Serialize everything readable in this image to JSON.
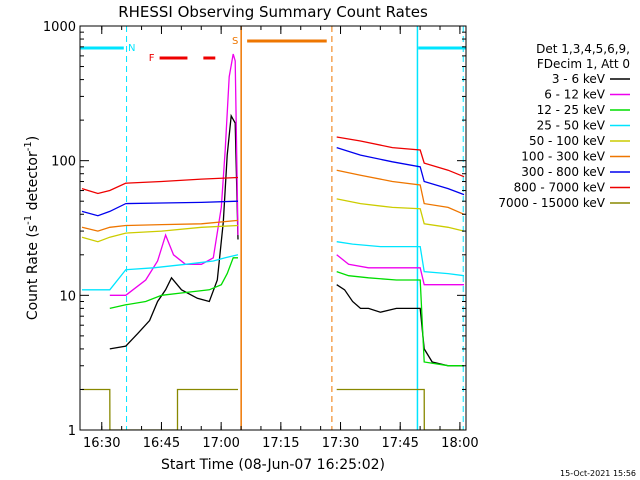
{
  "chart_data": {
    "type": "line",
    "title": "RHESSI Observing Summary Count Rates",
    "xlabel": "Start Time (08-Jun-07 16:25:02)",
    "ylabel_main": "Count Rate (s",
    "ylabel_sup1": "-1",
    "ylabel_mid": " detector",
    "ylabel_sup2": "-1",
    "ylabel_end": ")",
    "y_scale": "log",
    "ylim": [
      1,
      1000
    ],
    "xlim_minutes": [
      -0.5,
      96.5
    ],
    "x_ticks": [
      {
        "label": "16:30",
        "t": 4.97
      },
      {
        "label": "16:45",
        "t": 19.97
      },
      {
        "label": "17:00",
        "t": 34.97
      },
      {
        "label": "17:15",
        "t": 49.97
      },
      {
        "label": "17:30",
        "t": 64.97
      },
      {
        "label": "17:45",
        "t": 79.97
      },
      {
        "label": "18:00",
        "t": 94.97
      }
    ],
    "y_ticks": [
      {
        "label": "1",
        "v": 1
      },
      {
        "label": "10",
        "v": 10
      },
      {
        "label": "100",
        "v": 100
      },
      {
        "label": "1000",
        "v": 1000
      }
    ],
    "legend_header": [
      "Det 1,3,4,5,6,9,",
      "FDecim 1, Att 0"
    ],
    "legend_placement": "right",
    "timestamp": "15-Oct-2021 15:56",
    "flags": {
      "night_label": "N",
      "flare_label": "F",
      "saa_label": "S",
      "night_color": "#00e5ff",
      "flare_color": "#ee0000",
      "saa_color": "#ee7600",
      "night_intervals": [
        [
          -0.5,
          10.5
        ],
        [
          84.5,
          96.5
        ]
      ],
      "flare_intervals": [
        [
          19.5,
          26.5
        ],
        [
          30.5,
          33.5
        ]
      ],
      "saa_intervals": [
        [
          41.5,
          61.5
        ]
      ],
      "dashed_lines": [
        {
          "t": 11.2,
          "color": "#00e5ff"
        },
        {
          "t": 95.8,
          "color": "#00e5ff"
        },
        {
          "t": 62.8,
          "color": "#ee7600"
        }
      ],
      "solid_lines": [
        {
          "t": 84.3,
          "color": "#00e5ff"
        },
        {
          "t": 40.0,
          "color": "#ee7600"
        }
      ]
    },
    "series": [
      {
        "name": "3 - 6 keV",
        "color": "#000000",
        "x": [
          7.0,
          11.0,
          14.0,
          17.0,
          19.0,
          21.0,
          22.5,
          25.0,
          29.0,
          32.0,
          34.0,
          35.5,
          36.5,
          37.5,
          38.5,
          39.2,
          64.0,
          66.0,
          68.0,
          70.0,
          72.0,
          75.0,
          79.0,
          85.0,
          86.0,
          88.0,
          92.0,
          96.0
        ],
        "y": [
          4.0,
          4.2,
          5.2,
          6.5,
          9.0,
          11.0,
          13.5,
          11.0,
          9.5,
          9.0,
          13.0,
          35.0,
          110.0,
          215.0,
          190.0,
          26.0,
          12.0,
          11.0,
          9.0,
          8.0,
          8.0,
          7.5,
          8.0,
          8.0,
          4.0,
          3.2,
          3.0,
          3.0
        ]
      },
      {
        "name": "6 - 12 keV",
        "color": "#ee00ee",
        "x": [
          7.0,
          11.0,
          16.0,
          19.0,
          21.0,
          23.0,
          26.0,
          30.0,
          33.0,
          35.0,
          36.0,
          37.0,
          38.0,
          38.5,
          39.2,
          64.0,
          67.0,
          72.0,
          79.0,
          85.0,
          86.0,
          92.0,
          96.0
        ],
        "y": [
          10.0,
          10.0,
          13.0,
          18.0,
          28.0,
          20.0,
          17.0,
          17.0,
          19.0,
          45.0,
          120.0,
          420.0,
          620.0,
          550.0,
          28.0,
          20.0,
          17.0,
          16.0,
          16.0,
          16.0,
          12.0,
          12.0,
          12.0
        ]
      },
      {
        "name": "12 - 25 keV",
        "color": "#00dd00",
        "x": [
          7.0,
          11.0,
          16.0,
          20.0,
          26.0,
          32.0,
          35.0,
          36.5,
          38.0,
          39.2,
          64.0,
          67.0,
          72.0,
          79.0,
          85.0,
          86.0,
          92.0,
          96.0
        ],
        "y": [
          8.0,
          8.5,
          9.0,
          10.0,
          10.5,
          11.0,
          12.0,
          14.5,
          19.0,
          19.0,
          15.0,
          14.0,
          13.5,
          13.0,
          13.0,
          3.2,
          3.0,
          3.0
        ]
      },
      {
        "name": "25 - 50 keV",
        "color": "#00e5ff",
        "x": [
          0.0,
          4.0,
          7.0,
          11.0,
          18.0,
          26.0,
          33.0,
          36.0,
          39.2,
          64.0,
          68.0,
          75.0,
          85.0,
          86.0,
          92.0,
          96.0
        ],
        "y": [
          11.0,
          11.0,
          11.0,
          15.5,
          16.0,
          17.0,
          18.0,
          19.0,
          20.0,
          25.0,
          24.0,
          23.0,
          23.0,
          15.0,
          14.5,
          14.0
        ]
      },
      {
        "name": "50 - 100 keV",
        "color": "#cccc00",
        "x": [
          0.0,
          4.0,
          7.0,
          11.0,
          20.0,
          30.0,
          39.2,
          64.0,
          70.0,
          78.0,
          85.0,
          86.0,
          92.0,
          96.0
        ],
        "y": [
          27.0,
          25.0,
          27.0,
          29.0,
          30.0,
          32.0,
          33.0,
          52.0,
          48.0,
          45.0,
          44.0,
          34.0,
          32.0,
          30.0
        ]
      },
      {
        "name": "100 - 300 keV",
        "color": "#ee7600",
        "x": [
          0.0,
          4.0,
          7.0,
          11.0,
          20.0,
          30.0,
          39.2,
          64.0,
          70.0,
          78.0,
          85.0,
          86.0,
          92.0,
          96.0
        ],
        "y": [
          32.0,
          30.0,
          32.0,
          33.0,
          33.5,
          34.0,
          36.0,
          85.0,
          78.0,
          70.0,
          66.0,
          48.0,
          45.0,
          40.0
        ]
      },
      {
        "name": "300 - 800 keV",
        "color": "#0000ee",
        "x": [
          0.0,
          4.0,
          7.0,
          11.0,
          20.0,
          30.0,
          39.2,
          64.0,
          70.0,
          78.0,
          85.0,
          86.0,
          92.0,
          96.0
        ],
        "y": [
          42.0,
          39.0,
          42.0,
          48.0,
          48.5,
          49.0,
          50.0,
          125.0,
          110.0,
          98.0,
          90.0,
          70.0,
          62.0,
          56.0
        ]
      },
      {
        "name": "800 - 7000 keV",
        "color": "#ee0000",
        "x": [
          0.0,
          4.0,
          7.0,
          11.0,
          20.0,
          30.0,
          39.2,
          64.0,
          70.0,
          78.0,
          85.0,
          86.0,
          92.0,
          96.0
        ],
        "y": [
          62.0,
          57.0,
          60.0,
          68.0,
          70.0,
          73.0,
          75.0,
          150.0,
          140.0,
          125.0,
          120.0,
          96.0,
          85.0,
          76.0
        ]
      },
      {
        "name": "7000 - 15000 keV",
        "color": "#888800",
        "x": [
          0.0,
          7.0,
          7.01,
          11.0,
          24.0,
          24.01,
          39.2,
          64.0,
          64.01,
          84.0,
          84.01,
          86.0,
          86.01,
          96.0
        ],
        "y": [
          2.0,
          2.0,
          1.0,
          1.0,
          1.0,
          2.0,
          2.0,
          2.0,
          2.0,
          2.0,
          2.0,
          2.0,
          1.0,
          1.0
        ]
      }
    ]
  }
}
